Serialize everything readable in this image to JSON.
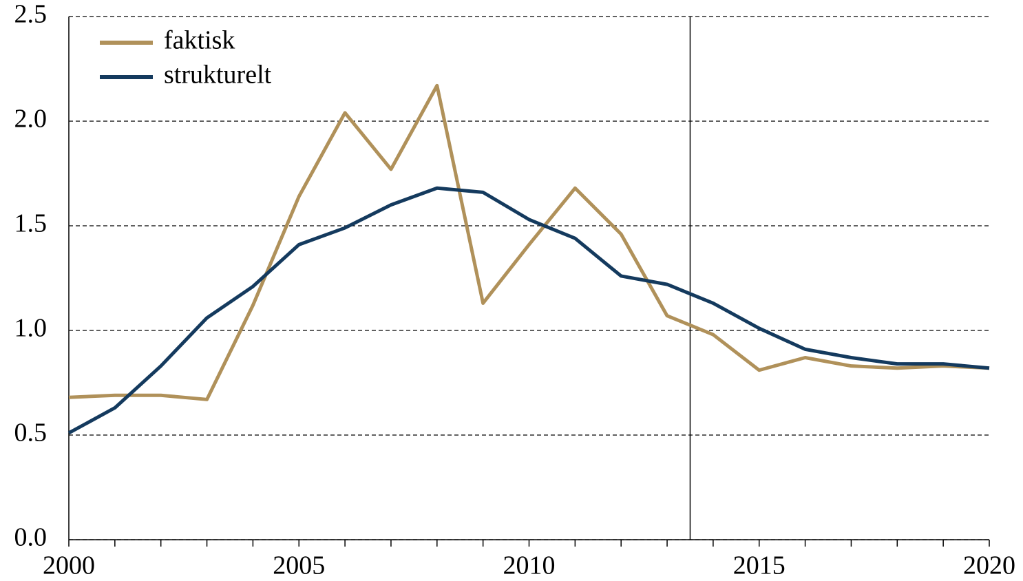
{
  "chart_data": {
    "type": "line",
    "x": [
      2000,
      2001,
      2002,
      2003,
      2004,
      2005,
      2006,
      2007,
      2008,
      2009,
      2010,
      2011,
      2012,
      2013,
      2014,
      2015,
      2016,
      2017,
      2018,
      2019,
      2020
    ],
    "series": [
      {
        "name": "faktisk",
        "color": "#b0915a",
        "values": [
          0.68,
          0.69,
          0.69,
          0.67,
          1.12,
          1.64,
          2.04,
          1.77,
          2.17,
          1.13,
          1.41,
          1.68,
          1.46,
          1.07,
          0.98,
          0.81,
          0.87,
          0.83,
          0.82,
          0.83,
          0.82
        ]
      },
      {
        "name": "strukturelt",
        "color": "#143a5e",
        "values": [
          0.51,
          0.63,
          0.83,
          1.06,
          1.21,
          1.41,
          1.49,
          1.6,
          1.68,
          1.66,
          1.53,
          1.44,
          1.26,
          1.22,
          1.13,
          1.01,
          0.91,
          0.87,
          0.84,
          0.84,
          0.82
        ]
      }
    ],
    "xlim": [
      2000,
      2020
    ],
    "xticks": [
      2000,
      2005,
      2010,
      2015,
      2020
    ],
    "ylim": [
      0,
      2.5
    ],
    "yticks": [
      {
        "value": 0,
        "label": "0.0"
      },
      0.5,
      {
        "value": 1,
        "label": "1.0"
      },
      1.5,
      {
        "value": 2,
        "label": "2.0"
      },
      2.5
    ],
    "vline": 2013.5,
    "grid": true,
    "legend": "upper left"
  }
}
